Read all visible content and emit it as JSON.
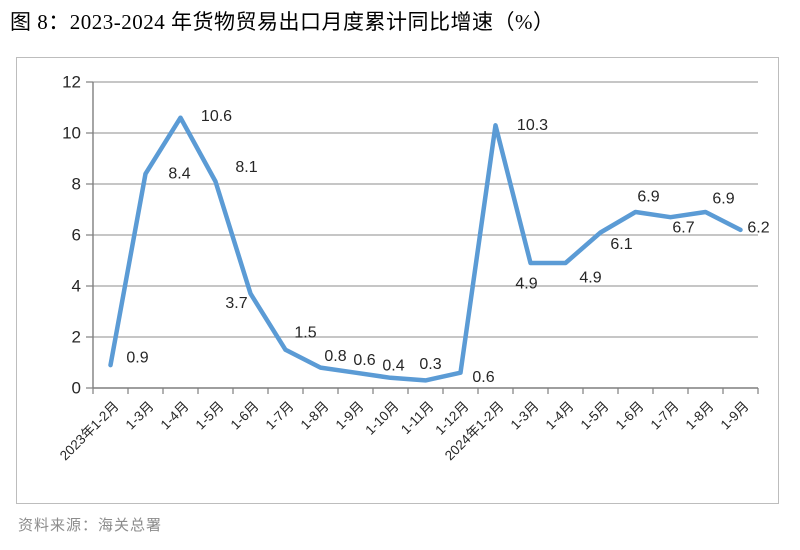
{
  "title": "图 8：2023-2024 年货物贸易出口月度累计同比增速（%）",
  "source": "资料来源：海关总署",
  "chart_data": {
    "type": "line",
    "title": "2023-2024 年货物贸易出口月度累计同比增速（%）",
    "categories": [
      "2023年1-2月",
      "1-3月",
      "1-4月",
      "1-5月",
      "1-6月",
      "1-7月",
      "1-8月",
      "1-9月",
      "1-10月",
      "1-11月",
      "1-12月",
      "2024年1-2月",
      "1-3月",
      "1-4月",
      "1-5月",
      "1-6月",
      "1-7月",
      "1-8月",
      "1-9月"
    ],
    "values": [
      0.9,
      8.4,
      10.6,
      8.1,
      3.7,
      1.5,
      0.8,
      0.6,
      0.4,
      0.3,
      0.6,
      10.3,
      4.9,
      4.9,
      6.1,
      6.9,
      6.7,
      6.9,
      6.2
    ],
    "data_labels": [
      "0.9",
      "8.4",
      "10.6",
      "8.1",
      "3.7",
      "1.5",
      "0.8",
      "0.6",
      "0.4",
      "0.3",
      "0.6",
      "10.3",
      "4.9",
      "4.9",
      "6.1",
      "6.9",
      "6.7",
      "6.9",
      "6.2"
    ],
    "xlabel": "",
    "ylabel": "",
    "ylim": [
      0,
      12
    ],
    "yticks": [
      0,
      2,
      4,
      6,
      8,
      10,
      12
    ],
    "grid": true,
    "legend": false,
    "line_color": "#5B9BD5",
    "gridline_color": "#a3a3a3",
    "axis_color": "#7f7f7f"
  }
}
